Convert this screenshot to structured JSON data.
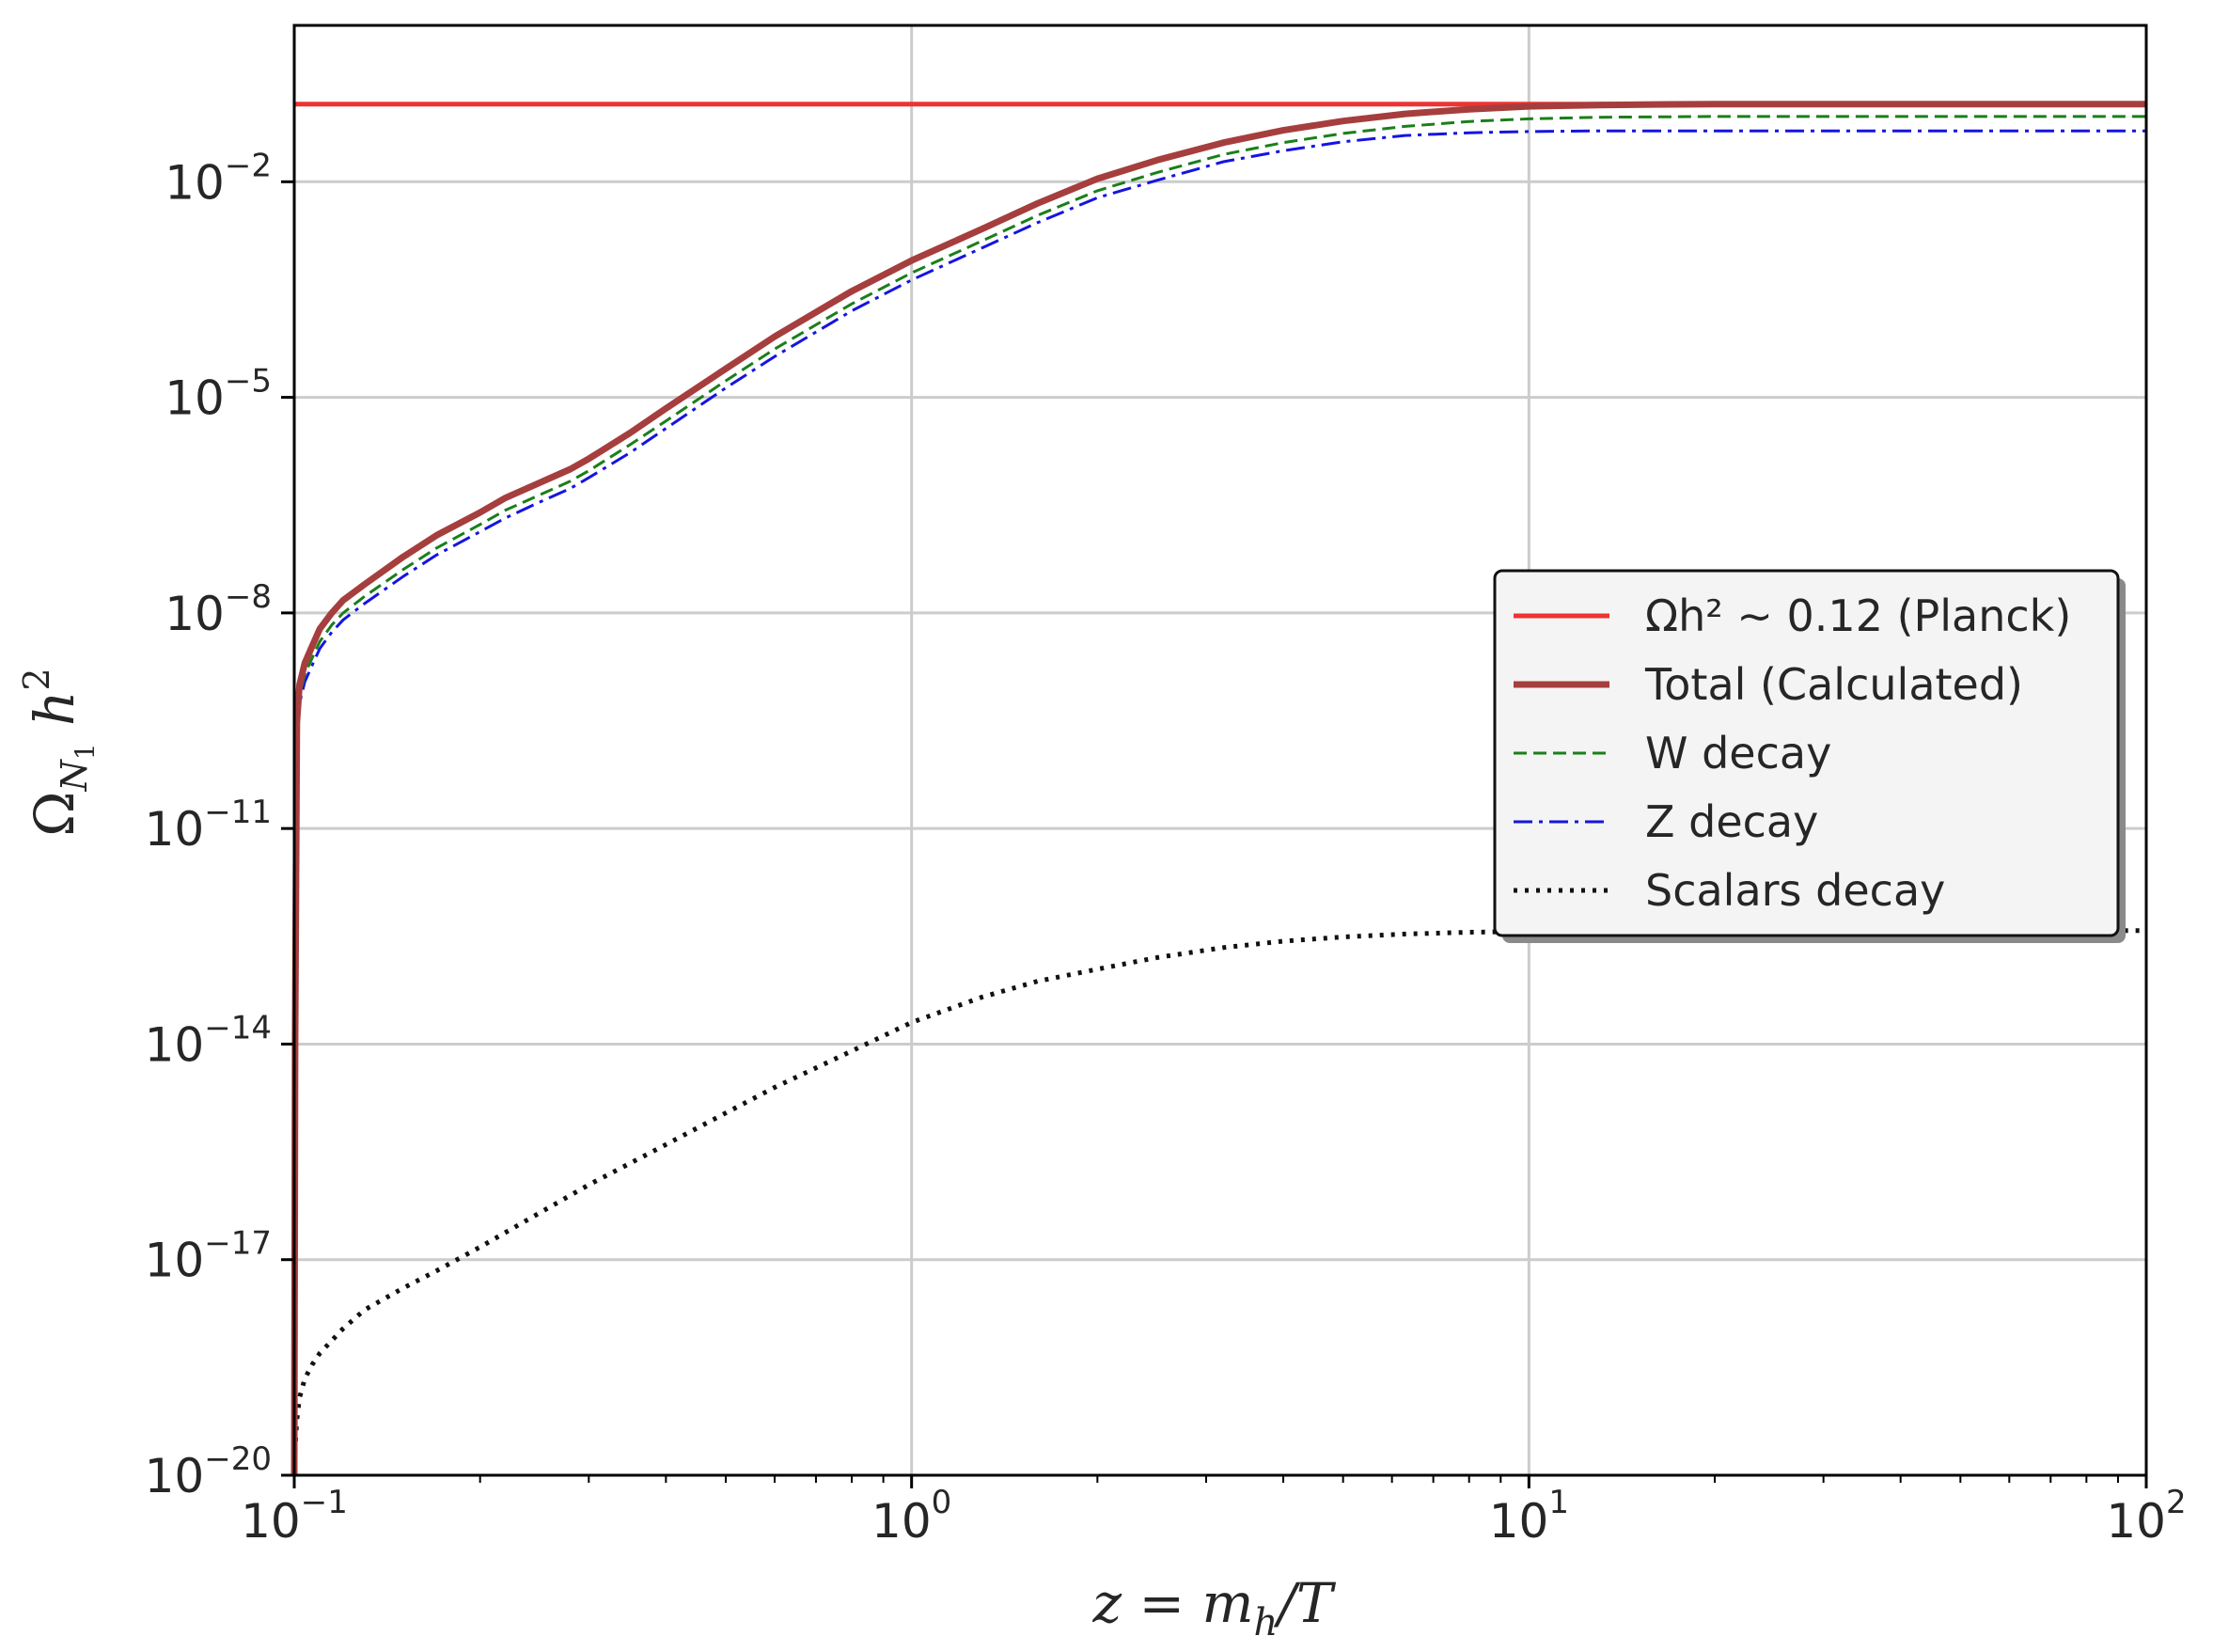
{
  "chart_data": {
    "type": "line",
    "title": "",
    "xlabel": "z = m_h/T",
    "ylabel": "Ω_N1 h^2",
    "x_scale": "log",
    "y_scale": "log",
    "xlim": [
      0.1,
      100
    ],
    "ylim": [
      1e-20,
      1.5
    ],
    "x_ticks": [
      {
        "base": "10",
        "exp": "−1",
        "value": 0.1
      },
      {
        "base": "10",
        "exp": "0",
        "value": 1
      },
      {
        "base": "10",
        "exp": "1",
        "value": 10
      },
      {
        "base": "10",
        "exp": "2",
        "value": 100
      }
    ],
    "y_ticks": [
      {
        "base": "10",
        "exp": "−2",
        "value": 0.01
      },
      {
        "base": "10",
        "exp": "−5",
        "value": 1e-05
      },
      {
        "base": "10",
        "exp": "−8",
        "value": 1e-08
      },
      {
        "base": "10",
        "exp": "−11",
        "value": 1e-11
      },
      {
        "base": "10",
        "exp": "−14",
        "value": 1e-14
      },
      {
        "base": "10",
        "exp": "−17",
        "value": 1e-17
      },
      {
        "base": "10",
        "exp": "−20",
        "value": 1e-20
      }
    ],
    "grid": true,
    "legend_position": "center-right",
    "series": [
      {
        "name": "Ωh² ∼ 0.12 (Planck)",
        "color": "#ee3333",
        "style": "solid",
        "x": [
          0.1,
          100
        ],
        "y": [
          0.12,
          0.12
        ]
      },
      {
        "name": "Total (Calculated)",
        "color": "#a63e3e",
        "style": "solid",
        "x": [
          0.1,
          0.1003,
          0.101,
          0.102,
          0.104,
          0.107,
          0.11,
          0.115,
          0.12,
          0.13,
          0.15,
          0.17,
          0.2,
          0.22,
          0.25,
          0.28,
          0.3,
          0.35,
          0.4,
          0.5,
          0.6,
          0.8,
          1.0,
          1.3,
          1.6,
          2.0,
          2.5,
          3.2,
          4.0,
          5.0,
          6.3,
          8.0,
          10,
          13,
          16,
          20,
          30,
          50,
          70,
          100
        ],
        "y": [
          1e-20,
          1e-14,
          3e-10,
          1e-09,
          2e-09,
          3.5e-09,
          6e-09,
          1e-08,
          1.5e-08,
          2.5e-08,
          6e-08,
          1.2e-07,
          2.5e-07,
          4e-07,
          6.5e-07,
          1e-06,
          1.4e-06,
          3.2e-06,
          7e-06,
          2.5e-05,
          7e-05,
          0.0003,
          0.0008,
          0.0022,
          0.005,
          0.011,
          0.02,
          0.035,
          0.052,
          0.07,
          0.088,
          0.102,
          0.112,
          0.117,
          0.119,
          0.12,
          0.12,
          0.12,
          0.12,
          0.12
        ]
      },
      {
        "name": "W decay",
        "color": "#1a7f1a",
        "style": "dashed",
        "x": [
          0.1,
          0.1003,
          0.101,
          0.102,
          0.104,
          0.107,
          0.11,
          0.115,
          0.12,
          0.13,
          0.15,
          0.17,
          0.2,
          0.22,
          0.25,
          0.28,
          0.3,
          0.35,
          0.4,
          0.5,
          0.6,
          0.8,
          1.0,
          1.3,
          1.6,
          2.0,
          2.5,
          3.2,
          4.0,
          5.0,
          6.3,
          8.0,
          10,
          13,
          16,
          20,
          30,
          50,
          70,
          100
        ],
        "y": [
          1e-20,
          7e-15,
          2e-10,
          7e-10,
          1.4e-09,
          2.4e-09,
          4e-09,
          6.8e-09,
          1e-08,
          1.7e-08,
          4e-08,
          8e-08,
          1.7e-07,
          2.7e-07,
          4.4e-07,
          6.8e-07,
          9.5e-07,
          2.2e-06,
          4.7e-06,
          1.7e-05,
          4.7e-05,
          0.0002,
          0.00054,
          0.0015,
          0.0034,
          0.0075,
          0.0135,
          0.024,
          0.035,
          0.047,
          0.059,
          0.069,
          0.075,
          0.079,
          0.08,
          0.081,
          0.081,
          0.081,
          0.081,
          0.081
        ]
      },
      {
        "name": "Z decay",
        "color": "#1515e0",
        "style": "dashdot",
        "x": [
          0.1,
          0.1003,
          0.101,
          0.102,
          0.104,
          0.107,
          0.11,
          0.115,
          0.12,
          0.13,
          0.15,
          0.17,
          0.2,
          0.22,
          0.25,
          0.28,
          0.3,
          0.35,
          0.4,
          0.5,
          0.6,
          0.8,
          1.0,
          1.3,
          1.6,
          2.0,
          2.5,
          3.2,
          4.0,
          5.0,
          6.3,
          8.0,
          10,
          13,
          16,
          20,
          30,
          50,
          70,
          100
        ],
        "y": [
          1e-20,
          5e-15,
          1.5e-10,
          5.5e-10,
          1.1e-09,
          1.9e-09,
          3.2e-09,
          5.4e-09,
          8e-09,
          1.35e-08,
          3.2e-08,
          6.4e-08,
          1.35e-07,
          2.1e-07,
          3.5e-07,
          5.4e-07,
          7.6e-07,
          1.7e-06,
          3.7e-06,
          1.35e-05,
          3.7e-05,
          0.00016,
          0.00043,
          0.0012,
          0.0027,
          0.006,
          0.0105,
          0.019,
          0.027,
          0.036,
          0.044,
          0.048,
          0.05,
          0.051,
          0.051,
          0.051,
          0.051,
          0.051,
          0.051,
          0.051
        ]
      },
      {
        "name": "Scalars decay",
        "color": "#111111",
        "style": "dotted",
        "x": [
          0.1,
          0.1005,
          0.101,
          0.102,
          0.104,
          0.107,
          0.11,
          0.12,
          0.13,
          0.15,
          0.17,
          0.2,
          0.25,
          0.3,
          0.4,
          0.5,
          0.6,
          0.8,
          1.0,
          1.3,
          1.6,
          2.0,
          2.5,
          3.2,
          4.0,
          5.0,
          6.3,
          8.0,
          10,
          13,
          16,
          20,
          30,
          50,
          70,
          100
        ],
        "y": [
          1e-20,
          3e-20,
          6e-20,
          1.2e-19,
          2.2e-19,
          3.5e-19,
          5e-19,
          1.1e-18,
          2e-18,
          4e-18,
          7e-18,
          1.5e-17,
          4.5e-17,
          1.1e-16,
          4e-16,
          1.1e-15,
          2.5e-15,
          8e-15,
          2e-14,
          4.5e-14,
          7.5e-14,
          1.1e-13,
          1.6e-13,
          2.2e-13,
          2.7e-13,
          3.1e-13,
          3.4e-13,
          3.6e-13,
          3.7e-13,
          3.75e-13,
          3.8e-13,
          3.8e-13,
          3.8e-13,
          3.8e-13,
          3.8e-13,
          3.8e-13
        ]
      }
    ]
  }
}
